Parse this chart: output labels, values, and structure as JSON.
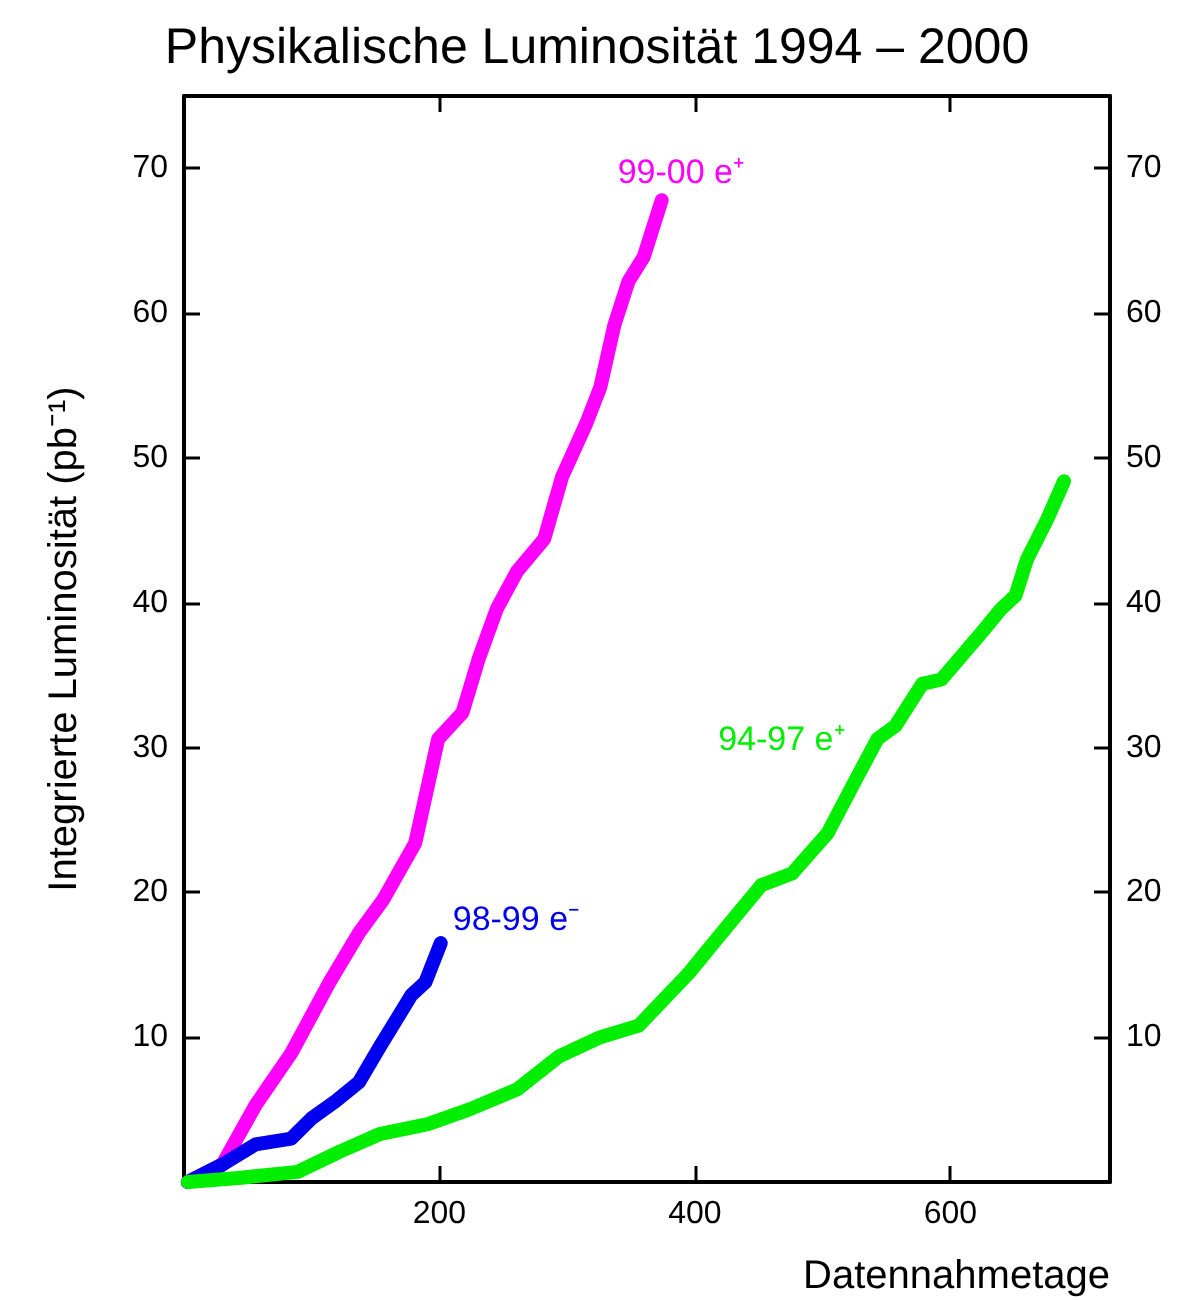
{
  "chart_data": {
    "type": "line",
    "title": "Physikalische Luminosität 1994 – 2000",
    "xlabel": "Datennahmetage",
    "ylabel": "Integrierte Luminosität (pb⁻¹)",
    "xlim": [
      0,
      725
    ],
    "xticks": [
      200,
      400,
      600
    ],
    "ylim": [
      0,
      75
    ],
    "yticks": [
      10,
      20,
      30,
      40,
      50,
      60,
      70
    ],
    "y2lim": [
      0,
      75
    ],
    "y2ticks": [
      10,
      20,
      30,
      40,
      50,
      60,
      70
    ],
    "grid": false,
    "legend": false,
    "marker": "none",
    "line_style": "solid",
    "series": [
      {
        "name": "99-00 e⁺",
        "color": "#ff00ff",
        "x": [
          3,
          30,
          56,
          84,
          114,
          137,
          156,
          181,
          199,
          218,
          231,
          245,
          261,
          282,
          296,
          315,
          326,
          337,
          348,
          360,
          374
        ],
        "values": [
          0,
          1.2,
          5.3,
          8.9,
          13.8,
          17.2,
          19.5,
          23.4,
          30.6,
          32.4,
          36.2,
          39.6,
          42.2,
          44.4,
          48.7,
          52.4,
          54.9,
          59.2,
          62.2,
          63.9,
          67.8
        ]
      },
      {
        "name": "98-99 e⁻",
        "color": "#0000ee",
        "x": [
          3,
          30,
          56,
          84,
          100,
          119,
          137,
          153,
          178,
          189,
          201
        ],
        "values": [
          0,
          1.2,
          2.6,
          3.0,
          4.4,
          5.6,
          6.9,
          9.3,
          12.9,
          13.8,
          16.5
        ]
      },
      {
        "name": "94-97 e⁺",
        "color": "#00ee00",
        "x": [
          3,
          45,
          89,
          122,
          153,
          191,
          223,
          261,
          294,
          326,
          356,
          395,
          421,
          452,
          476,
          504,
          526,
          543,
          557,
          578,
          593,
          624,
          640,
          651,
          660,
          676,
          689
        ],
        "values": [
          0,
          0.3,
          0.7,
          2.1,
          3.3,
          4.0,
          5.0,
          6.4,
          8.7,
          10.0,
          10.8,
          14.4,
          17.2,
          20.5,
          21.3,
          24.1,
          27.8,
          30.6,
          31.5,
          34.4,
          34.7,
          37.9,
          39.6,
          40.5,
          43.0,
          45.8,
          48.4
        ]
      }
    ]
  }
}
